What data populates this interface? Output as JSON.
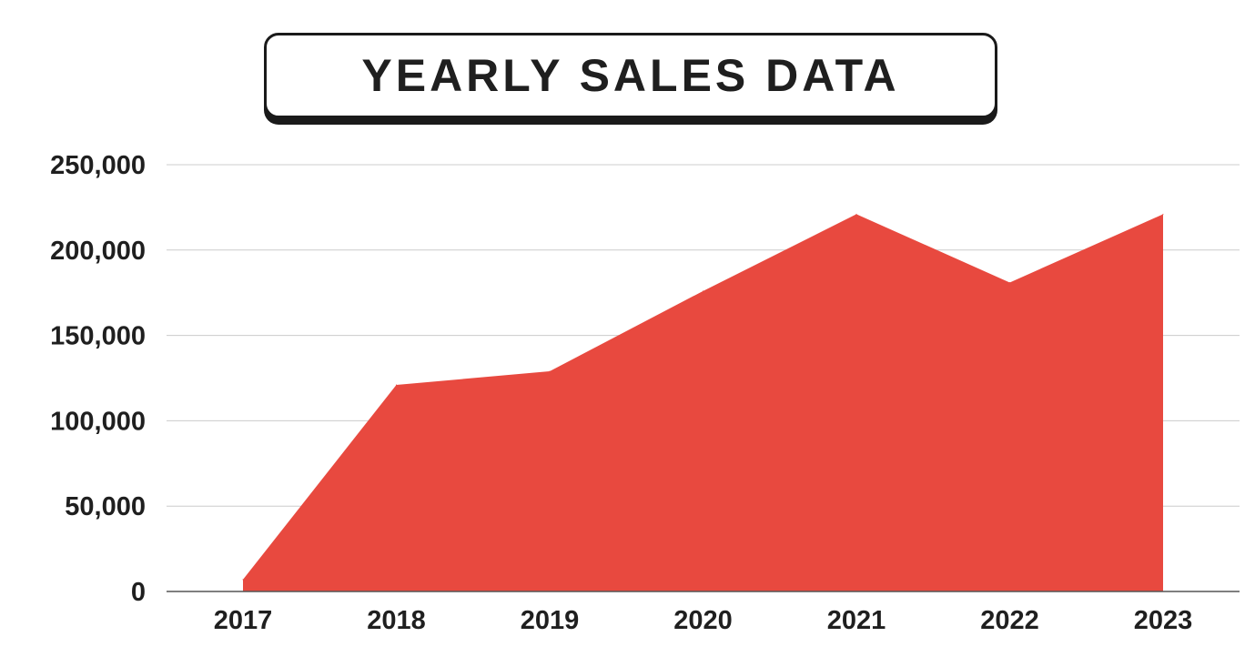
{
  "colors": {
    "area_fill": "#e8493f",
    "grid": "#cccccc",
    "axis": "#555555",
    "text": "#1f1f1f"
  },
  "chart_data": {
    "type": "area",
    "title": "YEARLY SALES DATA",
    "xlabel": "",
    "ylabel": "",
    "categories": [
      "2017",
      "2018",
      "2019",
      "2020",
      "2021",
      "2022",
      "2023"
    ],
    "series": [
      {
        "values": [
          7000,
          121000,
          129000,
          176000,
          221000,
          181000,
          221000
        ]
      }
    ],
    "ylim": [
      0,
      250000
    ],
    "yticks": [
      0,
      50000,
      100000,
      150000,
      200000,
      250000
    ],
    "ytick_labels": [
      "0",
      "50,000",
      "100,000",
      "150,000",
      "200,000",
      "250,000"
    ],
    "grid": true,
    "legend": "none"
  }
}
